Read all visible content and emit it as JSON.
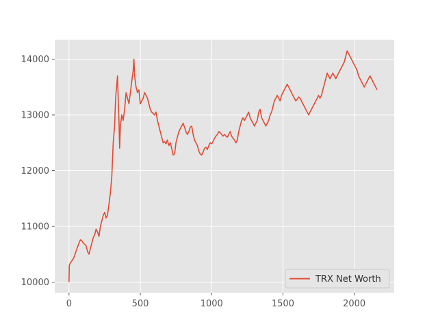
{
  "chart_data": {
    "type": "line",
    "title": "",
    "xlabel": "",
    "ylabel": "",
    "xlim": [
      -100,
      2280
    ],
    "ylim": [
      9810,
      14350
    ],
    "xticks": [
      0,
      500,
      1000,
      1500,
      2000
    ],
    "yticks": [
      10000,
      11000,
      12000,
      13000,
      14000
    ],
    "xtick_labels": [
      "0",
      "500",
      "1000",
      "1500",
      "2000"
    ],
    "ytick_labels": [
      "10000",
      "11000",
      "12000",
      "13000",
      "14000"
    ],
    "grid": true,
    "legend_position": "lower right",
    "series": [
      {
        "name": "TRX Net Worth",
        "color": "#E24A33",
        "points": [
          [
            0,
            10000
          ],
          [
            2,
            10300
          ],
          [
            10,
            10350
          ],
          [
            20,
            10380
          ],
          [
            30,
            10420
          ],
          [
            40,
            10480
          ],
          [
            50,
            10560
          ],
          [
            60,
            10630
          ],
          [
            70,
            10700
          ],
          [
            80,
            10760
          ],
          [
            90,
            10740
          ],
          [
            100,
            10700
          ],
          [
            110,
            10680
          ],
          [
            120,
            10650
          ],
          [
            130,
            10550
          ],
          [
            140,
            10500
          ],
          [
            150,
            10600
          ],
          [
            160,
            10700
          ],
          [
            170,
            10800
          ],
          [
            180,
            10850
          ],
          [
            190,
            10950
          ],
          [
            200,
            10900
          ],
          [
            210,
            10820
          ],
          [
            220,
            11000
          ],
          [
            230,
            11100
          ],
          [
            240,
            11200
          ],
          [
            250,
            11250
          ],
          [
            260,
            11150
          ],
          [
            270,
            11200
          ],
          [
            280,
            11400
          ],
          [
            290,
            11600
          ],
          [
            300,
            11900
          ],
          [
            310,
            12500
          ],
          [
            320,
            12800
          ],
          [
            325,
            13200
          ],
          [
            330,
            13400
          ],
          [
            340,
            13700
          ],
          [
            345,
            13300
          ],
          [
            350,
            12900
          ],
          [
            355,
            12400
          ],
          [
            360,
            12800
          ],
          [
            370,
            13000
          ],
          [
            380,
            12900
          ],
          [
            390,
            13100
          ],
          [
            400,
            13400
          ],
          [
            410,
            13300
          ],
          [
            420,
            13200
          ],
          [
            430,
            13400
          ],
          [
            440,
            13600
          ],
          [
            450,
            13800
          ],
          [
            455,
            14000
          ],
          [
            460,
            13700
          ],
          [
            470,
            13500
          ],
          [
            480,
            13400
          ],
          [
            490,
            13450
          ],
          [
            500,
            13200
          ],
          [
            510,
            13250
          ],
          [
            520,
            13300
          ],
          [
            530,
            13400
          ],
          [
            540,
            13350
          ],
          [
            550,
            13300
          ],
          [
            560,
            13200
          ],
          [
            570,
            13100
          ],
          [
            580,
            13050
          ],
          [
            600,
            13000
          ],
          [
            610,
            13050
          ],
          [
            620,
            12900
          ],
          [
            630,
            12800
          ],
          [
            640,
            12700
          ],
          [
            650,
            12600
          ],
          [
            660,
            12500
          ],
          [
            670,
            12520
          ],
          [
            680,
            12480
          ],
          [
            690,
            12550
          ],
          [
            700,
            12450
          ],
          [
            710,
            12500
          ],
          [
            720,
            12400
          ],
          [
            730,
            12280
          ],
          [
            740,
            12300
          ],
          [
            750,
            12500
          ],
          [
            760,
            12600
          ],
          [
            770,
            12700
          ],
          [
            780,
            12750
          ],
          [
            790,
            12800
          ],
          [
            800,
            12850
          ],
          [
            810,
            12780
          ],
          [
            820,
            12700
          ],
          [
            830,
            12650
          ],
          [
            840,
            12700
          ],
          [
            850,
            12780
          ],
          [
            860,
            12800
          ],
          [
            870,
            12650
          ],
          [
            880,
            12550
          ],
          [
            890,
            12500
          ],
          [
            900,
            12450
          ],
          [
            910,
            12350
          ],
          [
            920,
            12300
          ],
          [
            930,
            12280
          ],
          [
            940,
            12330
          ],
          [
            950,
            12400
          ],
          [
            960,
            12420
          ],
          [
            970,
            12380
          ],
          [
            980,
            12450
          ],
          [
            990,
            12500
          ],
          [
            1000,
            12480
          ],
          [
            1010,
            12520
          ],
          [
            1020,
            12580
          ],
          [
            1030,
            12620
          ],
          [
            1040,
            12650
          ],
          [
            1050,
            12700
          ],
          [
            1060,
            12680
          ],
          [
            1070,
            12650
          ],
          [
            1080,
            12620
          ],
          [
            1090,
            12650
          ],
          [
            1100,
            12620
          ],
          [
            1110,
            12600
          ],
          [
            1120,
            12650
          ],
          [
            1130,
            12700
          ],
          [
            1140,
            12620
          ],
          [
            1150,
            12580
          ],
          [
            1160,
            12550
          ],
          [
            1170,
            12500
          ],
          [
            1180,
            12550
          ],
          [
            1190,
            12700
          ],
          [
            1200,
            12800
          ],
          [
            1210,
            12900
          ],
          [
            1220,
            12950
          ],
          [
            1230,
            12900
          ],
          [
            1240,
            12950
          ],
          [
            1250,
            13000
          ],
          [
            1260,
            13050
          ],
          [
            1270,
            12950
          ],
          [
            1280,
            12900
          ],
          [
            1290,
            12850
          ],
          [
            1300,
            12800
          ],
          [
            1310,
            12850
          ],
          [
            1320,
            12900
          ],
          [
            1330,
            13050
          ],
          [
            1340,
            13100
          ],
          [
            1350,
            12950
          ],
          [
            1360,
            12900
          ],
          [
            1370,
            12850
          ],
          [
            1380,
            12800
          ],
          [
            1390,
            12850
          ],
          [
            1400,
            12900
          ],
          [
            1410,
            13000
          ],
          [
            1420,
            13050
          ],
          [
            1430,
            13150
          ],
          [
            1440,
            13250
          ],
          [
            1450,
            13300
          ],
          [
            1460,
            13350
          ],
          [
            1470,
            13300
          ],
          [
            1480,
            13250
          ],
          [
            1490,
            13350
          ],
          [
            1500,
            13400
          ],
          [
            1510,
            13450
          ],
          [
            1520,
            13500
          ],
          [
            1530,
            13550
          ],
          [
            1540,
            13500
          ],
          [
            1550,
            13450
          ],
          [
            1560,
            13400
          ],
          [
            1570,
            13350
          ],
          [
            1580,
            13300
          ],
          [
            1590,
            13250
          ],
          [
            1600,
            13280
          ],
          [
            1610,
            13320
          ],
          [
            1620,
            13300
          ],
          [
            1630,
            13250
          ],
          [
            1640,
            13200
          ],
          [
            1650,
            13150
          ],
          [
            1660,
            13100
          ],
          [
            1670,
            13050
          ],
          [
            1680,
            13000
          ],
          [
            1690,
            13050
          ],
          [
            1700,
            13100
          ],
          [
            1710,
            13150
          ],
          [
            1720,
            13200
          ],
          [
            1730,
            13250
          ],
          [
            1740,
            13300
          ],
          [
            1750,
            13350
          ],
          [
            1760,
            13300
          ],
          [
            1770,
            13350
          ],
          [
            1780,
            13450
          ],
          [
            1790,
            13550
          ],
          [
            1800,
            13650
          ],
          [
            1810,
            13750
          ],
          [
            1820,
            13700
          ],
          [
            1830,
            13650
          ],
          [
            1840,
            13700
          ],
          [
            1850,
            13750
          ],
          [
            1860,
            13700
          ],
          [
            1870,
            13650
          ],
          [
            1880,
            13700
          ],
          [
            1890,
            13750
          ],
          [
            1900,
            13800
          ],
          [
            1910,
            13850
          ],
          [
            1920,
            13900
          ],
          [
            1930,
            13950
          ],
          [
            1940,
            14050
          ],
          [
            1950,
            14150
          ],
          [
            1960,
            14100
          ],
          [
            1970,
            14050
          ],
          [
            1980,
            14000
          ],
          [
            1990,
            13950
          ],
          [
            2000,
            13900
          ],
          [
            2010,
            13850
          ],
          [
            2020,
            13800
          ],
          [
            2030,
            13700
          ],
          [
            2040,
            13650
          ],
          [
            2050,
            13600
          ],
          [
            2060,
            13550
          ],
          [
            2070,
            13500
          ],
          [
            2080,
            13550
          ],
          [
            2090,
            13600
          ],
          [
            2100,
            13650
          ],
          [
            2110,
            13700
          ],
          [
            2120,
            13650
          ],
          [
            2130,
            13600
          ],
          [
            2140,
            13550
          ],
          [
            2150,
            13500
          ],
          [
            2160,
            13450
          ]
        ]
      }
    ]
  }
}
